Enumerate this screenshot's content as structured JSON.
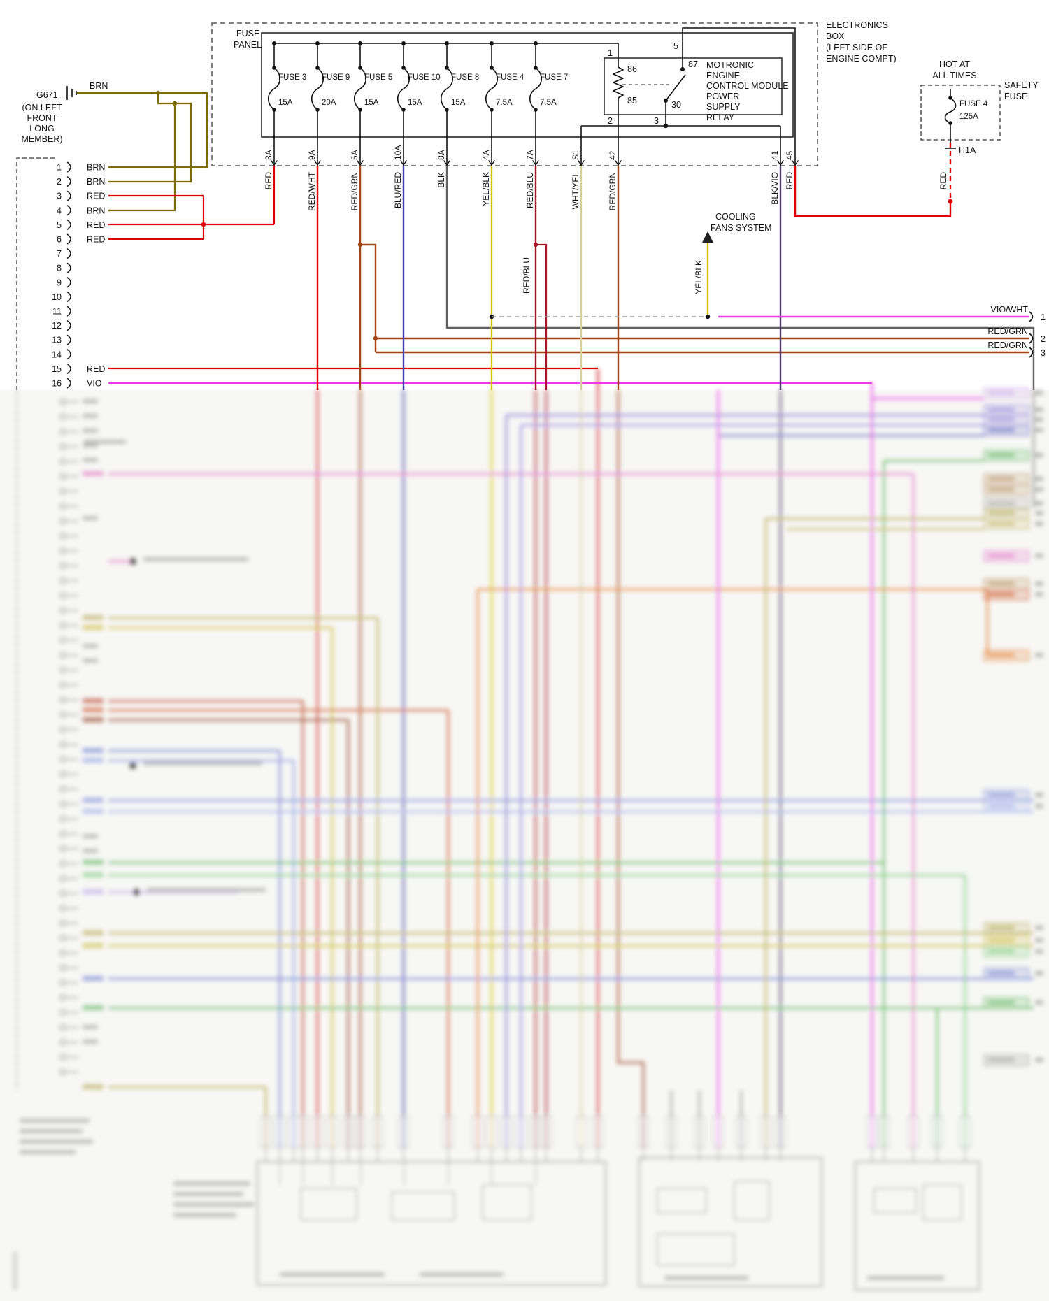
{
  "ground": {
    "id": "G671",
    "wire_color": "BRN",
    "location_lines": [
      "(ON LEFT",
      "FRONT",
      "LONG",
      "MEMBER)"
    ]
  },
  "left_connector": {
    "pins": [
      {
        "num": "1",
        "label": "BRN"
      },
      {
        "num": "2",
        "label": "BRN"
      },
      {
        "num": "3",
        "label": "RED"
      },
      {
        "num": "4",
        "label": "BRN"
      },
      {
        "num": "5",
        "label": "RED"
      },
      {
        "num": "6",
        "label": "RED"
      },
      {
        "num": "7",
        "label": ""
      },
      {
        "num": "8",
        "label": ""
      },
      {
        "num": "9",
        "label": ""
      },
      {
        "num": "10",
        "label": ""
      },
      {
        "num": "11",
        "label": ""
      },
      {
        "num": "12",
        "label": ""
      },
      {
        "num": "13",
        "label": ""
      },
      {
        "num": "14",
        "label": ""
      },
      {
        "num": "15",
        "label": "RED"
      },
      {
        "num": "16",
        "label": "VIO"
      }
    ]
  },
  "fuse_panel": {
    "title_lines": [
      "FUSE",
      "PANEL"
    ],
    "fuses": [
      {
        "name": "FUSE 3",
        "amps": "15A"
      },
      {
        "name": "FUSE 9",
        "amps": "20A"
      },
      {
        "name": "FUSE 5",
        "amps": "15A"
      },
      {
        "name": "FUSE 10",
        "amps": "15A"
      },
      {
        "name": "FUSE 8",
        "amps": "15A"
      },
      {
        "name": "FUSE 4",
        "amps": "7.5A"
      },
      {
        "name": "FUSE 7",
        "amps": "7.5A"
      }
    ]
  },
  "relay": {
    "name_lines": [
      "MOTRONIC",
      "ENGINE",
      "CONTROL MODULE",
      "POWER",
      "SUPPLY",
      "RELAY"
    ],
    "coil_top": "86",
    "coil_bottom": "85",
    "switch_top": "87",
    "switch_common": "30",
    "term_1": "1",
    "term_5": "5",
    "term_2": "2",
    "term_3": "3"
  },
  "electronics_box_lines": [
    "ELECTRONICS",
    "BOX",
    "(LEFT SIDE OF",
    "ENGINE COMPT)"
  ],
  "safety_fuse": {
    "hot_lines": [
      "HOT AT",
      "ALL TIMES"
    ],
    "name_lines": [
      "SAFETY",
      "FUSE"
    ],
    "fuse_name": "FUSE 4",
    "fuse_amps": "125A",
    "terminal": "H1A",
    "wire_color": "RED"
  },
  "cooling_fans": {
    "label_lines": [
      "COOLING",
      "FANS SYSTEM"
    ],
    "wire_color": "YEL/BLK"
  },
  "wire_drops": [
    {
      "terminal": "3A",
      "color": "RED"
    },
    {
      "terminal": "9A",
      "color": "RED/WHT"
    },
    {
      "terminal": "5A",
      "color": "RED/GRN"
    },
    {
      "terminal": "10A",
      "color": "BLU/RED"
    },
    {
      "terminal": "8A",
      "color": "BLK"
    },
    {
      "terminal": "4A",
      "color": "YEL/BLK"
    },
    {
      "terminal": "7A",
      "color": "RED/BLU"
    },
    {
      "terminal": "S1",
      "color": "WHT/YEL"
    },
    {
      "terminal": "42",
      "color": "RED/GRN"
    },
    {
      "terminal": "41",
      "color": "BLK/VIO"
    },
    {
      "terminal": "45",
      "color": "RED"
    }
  ],
  "extra_labels": {
    "red_blu": "RED/BLU"
  },
  "right_edge": [
    {
      "label": "VIO/WHT",
      "pin": "1"
    },
    {
      "label": "RED/GRN",
      "pin": "2"
    },
    {
      "label": "RED/GRN",
      "pin": "3"
    }
  ],
  "colors": {
    "red": "#e00000",
    "brn": "#7d6a00",
    "red_grn": "#a34416",
    "blu_red": "#4040a8",
    "blk": "#606060",
    "yel_blk": "#d8c400",
    "red_blu": "#a81428",
    "wht_yel": "#d6cf9a",
    "blk_vio": "#4f3a68",
    "vio": "#e83ce8",
    "vio_wht": "#e83ce8"
  }
}
